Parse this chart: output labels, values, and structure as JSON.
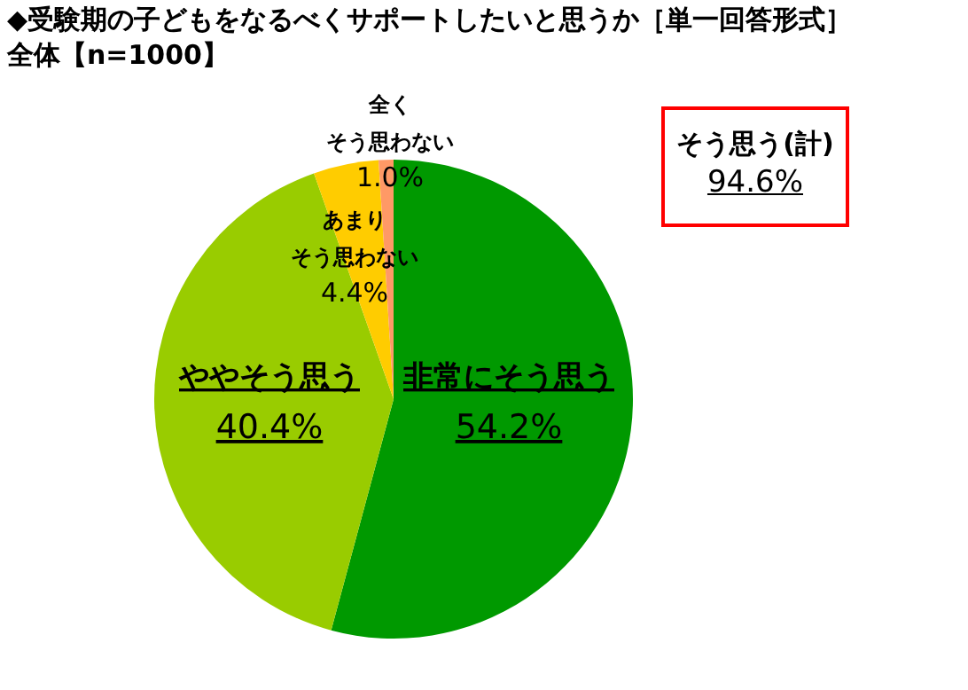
{
  "chart_data": {
    "type": "pie",
    "title": "◆受験期の子どもをなるべくサポートしたいと思うか［単一回答形式］",
    "subtitle": "全体【n=1000】",
    "categories": [
      "非常にそう思う",
      "ややそう思う",
      "あまりそう思わない",
      "全くそう思わない"
    ],
    "values": [
      54.2,
      40.4,
      4.4,
      1.0
    ],
    "value_labels": [
      "54.2%",
      "40.4%",
      "4.4%",
      "1.0%"
    ],
    "colors": [
      "#009900",
      "#99cc00",
      "#ffcc00",
      "#ff9966"
    ],
    "annotations": [
      "そう思う(計)\n94.6%"
    ]
  }
}
